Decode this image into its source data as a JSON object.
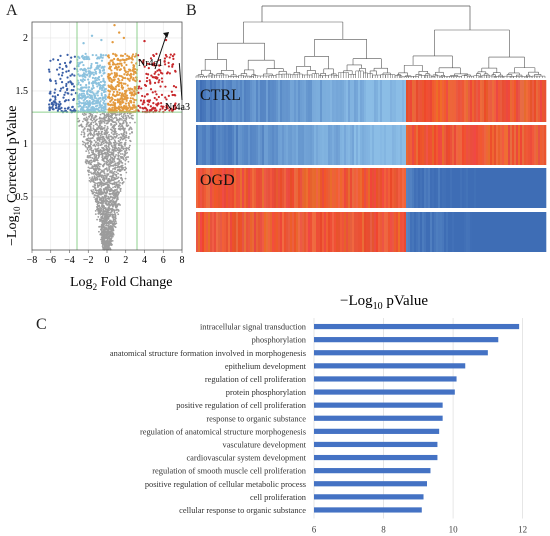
{
  "panels": {
    "a": "A",
    "b": "B",
    "c": "C"
  },
  "chart_data": [
    {
      "type": "scatter",
      "panel": "A",
      "xlabel_main": "Log",
      "xlabel_sub": "2",
      "xlabel_rest": " Fold Change",
      "ylabel_main": "−Log",
      "ylabel_sub": "10",
      "ylabel_rest": " Corrected pValue",
      "xlim": [
        -8,
        8
      ],
      "ylim": [
        0,
        2.15
      ],
      "xticks": [
        "−8",
        "−6",
        "−4",
        "−2",
        "0",
        "2",
        "4",
        "6",
        "8"
      ],
      "xtick_values": [
        -8,
        -6,
        -4,
        -2,
        0,
        2,
        4,
        6,
        8
      ],
      "yticks": [
        "0.5",
        "1",
        "1.5",
        "2"
      ],
      "ytick_values": [
        0.5,
        1,
        1.5,
        2
      ],
      "threshold_lines": {
        "x": [
          -3.2,
          3.2
        ],
        "y": 1.3
      },
      "grid": true,
      "annotations": [
        {
          "label": "Nr4a1",
          "x": 6.3,
          "y": 1.98
        },
        {
          "label": "Nr4a3",
          "x": 7.5,
          "y": 1.8
        }
      ],
      "colors": {
        "gray": "#9c9c9c",
        "dark_blue": "#3a5fa6",
        "light_blue": "#8cc2de",
        "orange": "#e39a3f",
        "red": "#c8282c",
        "guide": "#8fd08f"
      }
    },
    {
      "type": "heatmap",
      "panel": "B",
      "rows": [
        "CTRL",
        "",
        "OGD",
        ""
      ],
      "row_labels_shown": [
        "CTRL",
        "OGD"
      ],
      "split_fraction": 0.6,
      "colors": {
        "low": "#3e6db5",
        "mid": "#8bbde6",
        "high": "#e6482e"
      }
    },
    {
      "type": "bar",
      "orientation": "horizontal",
      "panel": "C",
      "title_main": "−Log",
      "title_sub": "10",
      "title_rest": " pValue",
      "categories": [
        "intracellular signal transduction",
        "phosphorylation",
        "anatomical structure formation involved in morphogenesis",
        "epithelium development",
        "regulation of cell proliferation",
        "protein phosphorylation",
        "positive regulation of cell proliferation",
        "response to organic substance",
        "regulation of anatomical structure morphogenesis",
        "vasculature development",
        "cardiovascular system development",
        "regulation of smooth muscle cell proliferation",
        "positive regulation of cellular metabolic process",
        "cell proliferation",
        "cellular response to organic substance"
      ],
      "values": [
        11.9,
        11.3,
        11.0,
        10.35,
        10.1,
        10.05,
        9.7,
        9.7,
        9.6,
        9.55,
        9.55,
        9.35,
        9.25,
        9.15,
        9.1
      ],
      "xlim": [
        6,
        12.5
      ],
      "xticks": [
        "6",
        "8",
        "10",
        "12"
      ],
      "xtick_values": [
        6,
        8,
        10,
        12
      ],
      "grid": true,
      "bar_color": "#4472c4"
    }
  ]
}
